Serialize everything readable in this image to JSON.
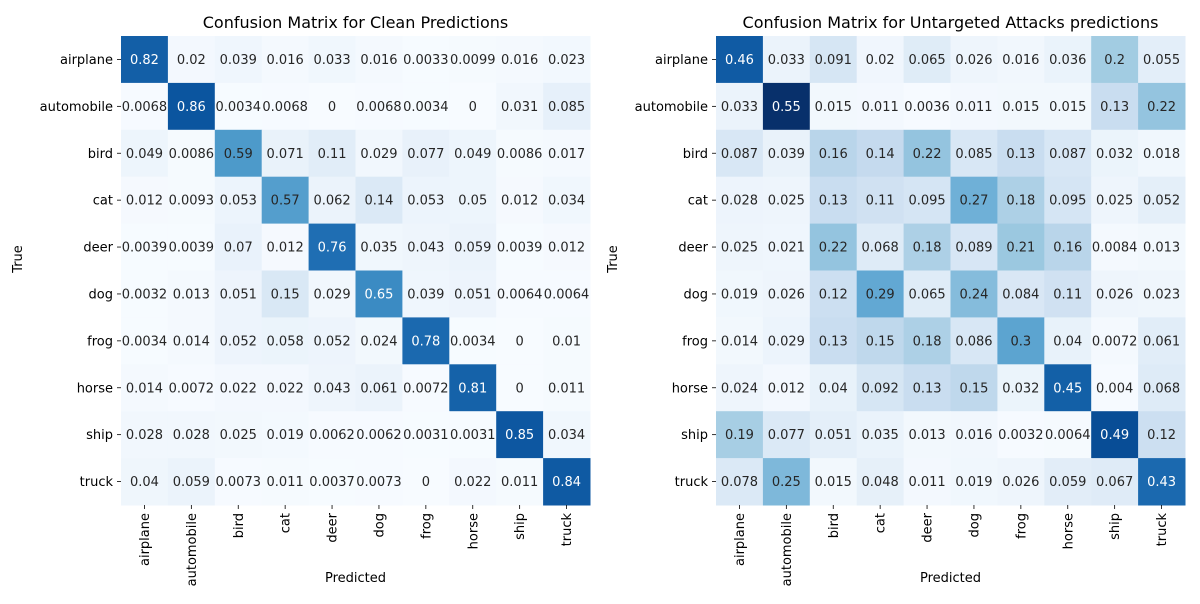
{
  "chart_data": [
    {
      "type": "heatmap",
      "title": "Confusion Matrix for Clean Predictions",
      "xlabel": "Predicted",
      "ylabel": "True",
      "colormap": "Blues",
      "value_range": [
        0,
        1
      ],
      "row_labels": [
        "airplane",
        "automobile",
        "bird",
        "cat",
        "deer",
        "dog",
        "frog",
        "horse",
        "ship",
        "truck"
      ],
      "col_labels": [
        "airplane",
        "automobile",
        "bird",
        "cat",
        "deer",
        "dog",
        "frog",
        "horse",
        "ship",
        "truck"
      ],
      "values": [
        [
          "0.82",
          "0.02",
          "0.039",
          "0.016",
          "0.033",
          "0.016",
          "0.0033",
          "0.0099",
          "0.016",
          "0.023"
        ],
        [
          "0.0068",
          "0.86",
          "0.0034",
          "0.0068",
          "0",
          "0.0068",
          "0.0034",
          "0",
          "0.031",
          "0.085"
        ],
        [
          "0.049",
          "0.0086",
          "0.59",
          "0.071",
          "0.11",
          "0.029",
          "0.077",
          "0.049",
          "0.0086",
          "0.017"
        ],
        [
          "0.012",
          "0.0093",
          "0.053",
          "0.57",
          "0.062",
          "0.14",
          "0.053",
          "0.05",
          "0.012",
          "0.034"
        ],
        [
          "0.0039",
          "0.0039",
          "0.07",
          "0.012",
          "0.76",
          "0.035",
          "0.043",
          "0.059",
          "0.0039",
          "0.012"
        ],
        [
          "0.0032",
          "0.013",
          "0.051",
          "0.15",
          "0.029",
          "0.65",
          "0.039",
          "0.051",
          "0.0064",
          "0.0064"
        ],
        [
          "0.0034",
          "0.014",
          "0.052",
          "0.058",
          "0.052",
          "0.024",
          "0.78",
          "0.0034",
          "0",
          "0.01"
        ],
        [
          "0.014",
          "0.0072",
          "0.022",
          "0.022",
          "0.043",
          "0.061",
          "0.0072",
          "0.81",
          "0",
          "0.011"
        ],
        [
          "0.028",
          "0.028",
          "0.025",
          "0.019",
          "0.0062",
          "0.0062",
          "0.0031",
          "0.0031",
          "0.85",
          "0.034"
        ],
        [
          "0.04",
          "0.059",
          "0.0073",
          "0.011",
          "0.0037",
          "0.0073",
          "0",
          "0.022",
          "0.011",
          "0.84"
        ]
      ]
    },
    {
      "type": "heatmap",
      "title": "Confusion Matrix for Untargeted Attacks predictions",
      "xlabel": "Predicted",
      "ylabel": "True",
      "colormap": "Blues",
      "value_range": [
        0,
        0.55
      ],
      "row_labels": [
        "airplane",
        "automobile",
        "bird",
        "cat",
        "deer",
        "dog",
        "frog",
        "horse",
        "ship",
        "truck"
      ],
      "col_labels": [
        "airplane",
        "automobile",
        "bird",
        "cat",
        "deer",
        "dog",
        "frog",
        "horse",
        "ship",
        "truck"
      ],
      "values": [
        [
          "0.46",
          "0.033",
          "0.091",
          "0.02",
          "0.065",
          "0.026",
          "0.016",
          "0.036",
          "0.2",
          "0.055"
        ],
        [
          "0.033",
          "0.55",
          "0.015",
          "0.011",
          "0.0036",
          "0.011",
          "0.015",
          "0.015",
          "0.13",
          "0.22"
        ],
        [
          "0.087",
          "0.039",
          "0.16",
          "0.14",
          "0.22",
          "0.085",
          "0.13",
          "0.087",
          "0.032",
          "0.018"
        ],
        [
          "0.028",
          "0.025",
          "0.13",
          "0.11",
          "0.095",
          "0.27",
          "0.18",
          "0.095",
          "0.025",
          "0.052"
        ],
        [
          "0.025",
          "0.021",
          "0.22",
          "0.068",
          "0.18",
          "0.089",
          "0.21",
          "0.16",
          "0.0084",
          "0.013"
        ],
        [
          "0.019",
          "0.026",
          "0.12",
          "0.29",
          "0.065",
          "0.24",
          "0.084",
          "0.11",
          "0.026",
          "0.023"
        ],
        [
          "0.014",
          "0.029",
          "0.13",
          "0.15",
          "0.18",
          "0.086",
          "0.3",
          "0.04",
          "0.0072",
          "0.061"
        ],
        [
          "0.024",
          "0.012",
          "0.04",
          "0.092",
          "0.13",
          "0.15",
          "0.032",
          "0.45",
          "0.004",
          "0.068"
        ],
        [
          "0.19",
          "0.077",
          "0.051",
          "0.035",
          "0.013",
          "0.016",
          "0.0032",
          "0.0064",
          "0.49",
          "0.12"
        ],
        [
          "0.078",
          "0.25",
          "0.015",
          "0.048",
          "0.011",
          "0.019",
          "0.026",
          "0.059",
          "0.067",
          "0.43"
        ]
      ]
    }
  ]
}
